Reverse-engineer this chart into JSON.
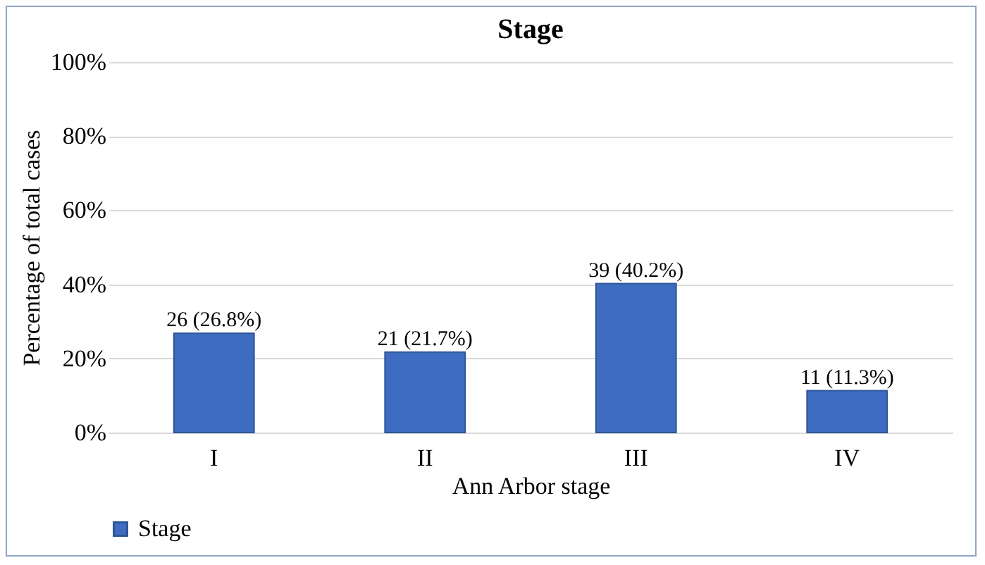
{
  "chart_data": {
    "type": "bar",
    "title": "Stage",
    "xlabel": "Ann Arbor stage",
    "ylabel": "Percentage of total cases",
    "categories": [
      "I",
      "II",
      "III",
      "IV"
    ],
    "series": [
      {
        "name": "Stage",
        "color": "#3d6cc0",
        "values": [
          26.8,
          21.7,
          40.2,
          11.3
        ],
        "value_labels": [
          "26 (26.8%)",
          "21 (21.7%)",
          "39 (40.2%)",
          "11 (11.3%)"
        ]
      }
    ],
    "ylim": [
      0,
      100
    ],
    "yticks": [
      {
        "value": 0,
        "label": "0%"
      },
      {
        "value": 20,
        "label": "20%"
      },
      {
        "value": 40,
        "label": "40%"
      },
      {
        "value": 60,
        "label": "60%"
      },
      {
        "value": 80,
        "label": "80%"
      },
      {
        "value": 100,
        "label": "100%"
      }
    ],
    "grid": "y",
    "legend": "bottom"
  }
}
